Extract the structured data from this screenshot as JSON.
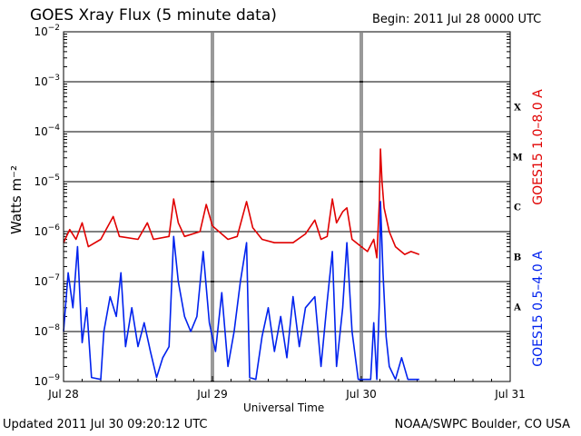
{
  "header": {
    "title": "GOES Xray Flux (5 minute data)",
    "begin": "Begin:  2011 Jul 28 0000 UTC"
  },
  "footer": {
    "updated": "Updated 2011 Jul 30 09:20:12 UTC",
    "credit": "NOAA/SWPC Boulder, CO USA"
  },
  "chart_data": {
    "type": "line",
    "title": "GOES Xray Flux (5 minute data)",
    "xlabel": "Universal Time",
    "ylabel": "Watts m⁻²",
    "y_scale": "log",
    "ylim": [
      1e-09,
      0.01
    ],
    "xlim": [
      "2011-07-28 00:00",
      "2011-07-31 00:00"
    ],
    "x_ticks": [
      "Jul 28",
      "Jul 29",
      "Jul 30",
      "Jul 31"
    ],
    "y_ticks": [
      {
        "value": 1e-09,
        "base": "10",
        "exp": "−9"
      },
      {
        "value": 1e-08,
        "base": "10",
        "exp": "−8"
      },
      {
        "value": 1e-07,
        "base": "10",
        "exp": "−7"
      },
      {
        "value": 1e-06,
        "base": "10",
        "exp": "−6"
      },
      {
        "value": 1e-05,
        "base": "10",
        "exp": "−5"
      },
      {
        "value": 0.0001,
        "base": "10",
        "exp": "−4"
      },
      {
        "value": 0.001,
        "base": "10",
        "exp": "−3"
      },
      {
        "value": 0.01,
        "base": "10",
        "exp": "−2"
      }
    ],
    "flare_classes": [
      {
        "label": "A",
        "low": 1e-08
      },
      {
        "label": "B",
        "low": 1e-07
      },
      {
        "label": "C",
        "low": 1e-06
      },
      {
        "label": "M",
        "low": 1e-05
      },
      {
        "label": "X",
        "low": 0.0001
      }
    ],
    "grid": true,
    "series": [
      {
        "name": "GOES15 1.0–8.0 A",
        "color": "#e00000",
        "points": [
          [
            "2011-07-28 00:00",
            6e-07
          ],
          [
            "2011-07-28 01:00",
            1.1e-06
          ],
          [
            "2011-07-28 02:00",
            7e-07
          ],
          [
            "2011-07-28 03:00",
            1.5e-06
          ],
          [
            "2011-07-28 04:00",
            5e-07
          ],
          [
            "2011-07-28 06:00",
            7e-07
          ],
          [
            "2011-07-28 08:00",
            2e-06
          ],
          [
            "2011-07-28 09:00",
            8e-07
          ],
          [
            "2011-07-28 12:00",
            7e-07
          ],
          [
            "2011-07-28 13:30",
            1.5e-06
          ],
          [
            "2011-07-28 14:30",
            7e-07
          ],
          [
            "2011-07-28 17:00",
            8e-07
          ],
          [
            "2011-07-28 17:45",
            4.5e-06
          ],
          [
            "2011-07-28 18:30",
            1.5e-06
          ],
          [
            "2011-07-28 19:30",
            8e-07
          ],
          [
            "2011-07-28 22:00",
            1e-06
          ],
          [
            "2011-07-28 23:00",
            3.5e-06
          ],
          [
            "2011-07-29 00:00",
            1.3e-06
          ],
          [
            "2011-07-29 02:30",
            7e-07
          ],
          [
            "2011-07-29 04:00",
            8e-07
          ],
          [
            "2011-07-29 05:30",
            4e-06
          ],
          [
            "2011-07-29 06:30",
            1.2e-06
          ],
          [
            "2011-07-29 08:00",
            7e-07
          ],
          [
            "2011-07-29 10:00",
            6e-07
          ],
          [
            "2011-07-29 13:00",
            6e-07
          ],
          [
            "2011-07-29 15:00",
            9e-07
          ],
          [
            "2011-07-29 16:30",
            1.7e-06
          ],
          [
            "2011-07-29 17:30",
            7e-07
          ],
          [
            "2011-07-29 18:30",
            8e-07
          ],
          [
            "2011-07-29 19:20",
            4.5e-06
          ],
          [
            "2011-07-29 20:00",
            1.5e-06
          ],
          [
            "2011-07-29 21:00",
            2.5e-06
          ],
          [
            "2011-07-29 21:40",
            3e-06
          ],
          [
            "2011-07-29 22:30",
            7e-07
          ],
          [
            "2011-07-30 00:00",
            5e-07
          ],
          [
            "2011-07-30 01:00",
            4e-07
          ],
          [
            "2011-07-30 02:00",
            7e-07
          ],
          [
            "2011-07-30 02:30",
            3e-07
          ],
          [
            "2011-07-30 02:55",
            4e-06
          ],
          [
            "2011-07-30 03:05",
            4.5e-05
          ],
          [
            "2011-07-30 03:20",
            1e-05
          ],
          [
            "2011-07-30 03:40",
            3e-06
          ],
          [
            "2011-07-30 04:30",
            1e-06
          ],
          [
            "2011-07-30 05:30",
            5e-07
          ],
          [
            "2011-07-30 07:00",
            3.5e-07
          ],
          [
            "2011-07-30 08:00",
            4e-07
          ],
          [
            "2011-07-30 09:20",
            3.5e-07
          ]
        ]
      },
      {
        "name": "GOES15 0.5–4.0 A",
        "color": "#0022ee",
        "points": [
          [
            "2011-07-28 00:00",
            1e-08
          ],
          [
            "2011-07-28 00:45",
            1.5e-07
          ],
          [
            "2011-07-28 01:30",
            3e-08
          ],
          [
            "2011-07-28 02:15",
            5e-07
          ],
          [
            "2011-07-28 03:00",
            6e-09
          ],
          [
            "2011-07-28 03:45",
            3e-08
          ],
          [
            "2011-07-28 04:30",
            1.2e-09
          ],
          [
            "2011-07-28 06:00",
            1.1e-09
          ],
          [
            "2011-07-28 06:30",
            1e-08
          ],
          [
            "2011-07-28 07:30",
            5e-08
          ],
          [
            "2011-07-28 08:30",
            2e-08
          ],
          [
            "2011-07-28 09:15",
            1.5e-07
          ],
          [
            "2011-07-28 10:00",
            5e-09
          ],
          [
            "2011-07-28 11:00",
            3e-08
          ],
          [
            "2011-07-28 12:00",
            5e-09
          ],
          [
            "2011-07-28 13:00",
            1.5e-08
          ],
          [
            "2011-07-28 14:00",
            4e-09
          ],
          [
            "2011-07-28 15:00",
            1.2e-09
          ],
          [
            "2011-07-28 16:00",
            3e-09
          ],
          [
            "2011-07-28 17:00",
            5e-09
          ],
          [
            "2011-07-28 17:45",
            8e-07
          ],
          [
            "2011-07-28 18:30",
            1e-07
          ],
          [
            "2011-07-28 19:30",
            2e-08
          ],
          [
            "2011-07-28 20:30",
            1e-08
          ],
          [
            "2011-07-28 21:30",
            2e-08
          ],
          [
            "2011-07-28 22:30",
            4e-07
          ],
          [
            "2011-07-28 23:30",
            1.5e-08
          ],
          [
            "2011-07-29 00:30",
            4e-09
          ],
          [
            "2011-07-29 01:30",
            6e-08
          ],
          [
            "2011-07-29 02:30",
            2e-09
          ],
          [
            "2011-07-29 03:30",
            1e-08
          ],
          [
            "2011-07-29 04:30",
            1e-07
          ],
          [
            "2011-07-29 05:30",
            6e-07
          ],
          [
            "2011-07-29 06:00",
            1.2e-09
          ],
          [
            "2011-07-29 07:00",
            1.1e-09
          ],
          [
            "2011-07-29 08:00",
            8e-09
          ],
          [
            "2011-07-29 09:00",
            3e-08
          ],
          [
            "2011-07-29 10:00",
            4e-09
          ],
          [
            "2011-07-29 11:00",
            2e-08
          ],
          [
            "2011-07-29 12:00",
            3e-09
          ],
          [
            "2011-07-29 13:00",
            5e-08
          ],
          [
            "2011-07-29 14:00",
            5e-09
          ],
          [
            "2011-07-29 15:00",
            3e-08
          ],
          [
            "2011-07-29 16:30",
            5e-08
          ],
          [
            "2011-07-29 17:30",
            2e-09
          ],
          [
            "2011-07-29 18:30",
            4e-08
          ],
          [
            "2011-07-29 19:20",
            4e-07
          ],
          [
            "2011-07-29 20:00",
            2e-09
          ],
          [
            "2011-07-29 21:00",
            3e-08
          ],
          [
            "2011-07-29 21:40",
            6e-07
          ],
          [
            "2011-07-29 22:30",
            1e-08
          ],
          [
            "2011-07-29 23:30",
            1.1e-09
          ],
          [
            "2011-07-30 00:30",
            1.1e-09
          ],
          [
            "2011-07-30 01:30",
            1.1e-09
          ],
          [
            "2011-07-30 02:00",
            1.5e-08
          ],
          [
            "2011-07-30 02:30",
            1.1e-09
          ],
          [
            "2011-07-30 02:55",
            4e-08
          ],
          [
            "2011-07-30 03:05",
            4e-06
          ],
          [
            "2011-07-30 03:30",
            1.5e-07
          ],
          [
            "2011-07-30 04:00",
            8e-09
          ],
          [
            "2011-07-30 04:30",
            2e-09
          ],
          [
            "2011-07-30 05:30",
            1.1e-09
          ],
          [
            "2011-07-30 06:30",
            3e-09
          ],
          [
            "2011-07-30 07:30",
            1.1e-09
          ],
          [
            "2011-07-30 08:30",
            1.1e-09
          ],
          [
            "2011-07-30 09:20",
            1.1e-09
          ]
        ]
      }
    ]
  }
}
